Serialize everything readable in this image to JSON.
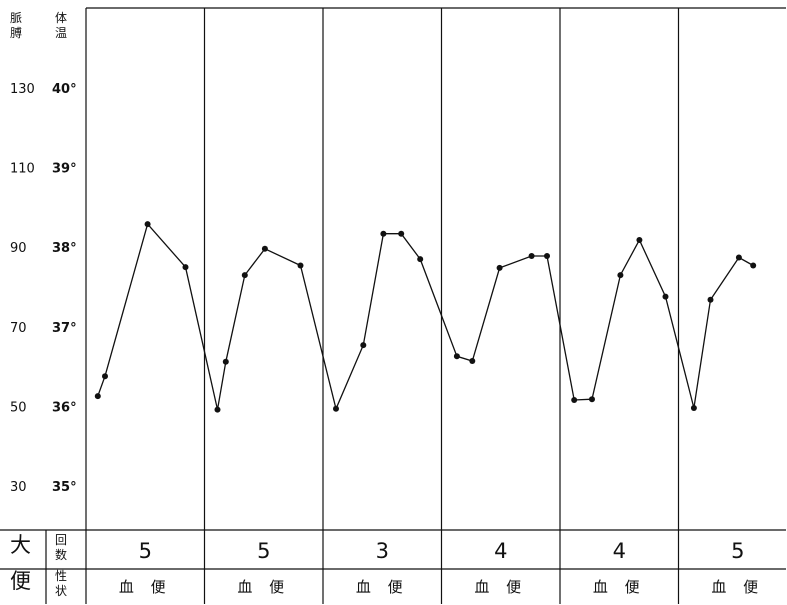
{
  "chart_data": {
    "type": "line",
    "header": {
      "pulse_label": [
        "脈",
        "膊"
      ],
      "temp_label": [
        "体",
        "温"
      ]
    },
    "pulse_ticks": [
      "130",
      "110",
      "90",
      "70",
      "50",
      "30"
    ],
    "temp_ticks": [
      "40°",
      "39°",
      "38°",
      "37°",
      "36°",
      "35°"
    ],
    "temp_range": [
      34.5,
      40.5
    ],
    "series": [
      {
        "values": [
          {
            "x": 0.1,
            "y": 36.13
          },
          {
            "x": 0.16,
            "y": 36.38
          },
          {
            "x": 0.52,
            "y": 38.29
          },
          {
            "x": 0.84,
            "y": 37.75
          },
          {
            "x": 1.11,
            "y": 35.96
          },
          {
            "x": 1.18,
            "y": 36.56
          },
          {
            "x": 1.34,
            "y": 37.65
          },
          {
            "x": 1.51,
            "y": 37.98
          },
          {
            "x": 1.81,
            "y": 37.77
          },
          {
            "x": 2.11,
            "y": 35.97
          },
          {
            "x": 2.34,
            "y": 36.77
          },
          {
            "x": 2.51,
            "y": 38.17
          },
          {
            "x": 2.66,
            "y": 38.17
          },
          {
            "x": 2.82,
            "y": 37.85
          },
          {
            "x": 3.13,
            "y": 36.63
          },
          {
            "x": 3.26,
            "y": 36.57
          },
          {
            "x": 3.49,
            "y": 37.74
          },
          {
            "x": 3.76,
            "y": 37.89
          },
          {
            "x": 3.89,
            "y": 37.89
          },
          {
            "x": 4.12,
            "y": 36.08
          },
          {
            "x": 4.27,
            "y": 36.09
          },
          {
            "x": 4.51,
            "y": 37.65
          },
          {
            "x": 4.67,
            "y": 38.09
          },
          {
            "x": 4.89,
            "y": 37.38
          },
          {
            "x": 5.13,
            "y": 35.98
          },
          {
            "x": 5.27,
            "y": 37.34
          },
          {
            "x": 5.51,
            "y": 37.87
          },
          {
            "x": 5.63,
            "y": 37.77
          }
        ]
      }
    ],
    "table": {
      "row1_label": "大",
      "row2_label": "便",
      "count_label": [
        "回",
        "数"
      ],
      "nature_label": [
        "性",
        "状"
      ],
      "counts": [
        "5",
        "5",
        "3",
        "4",
        "4",
        "5"
      ],
      "nature": [
        "血 便",
        "血 便",
        "血 便",
        "血 便",
        "血 便",
        "血 便"
      ]
    }
  }
}
